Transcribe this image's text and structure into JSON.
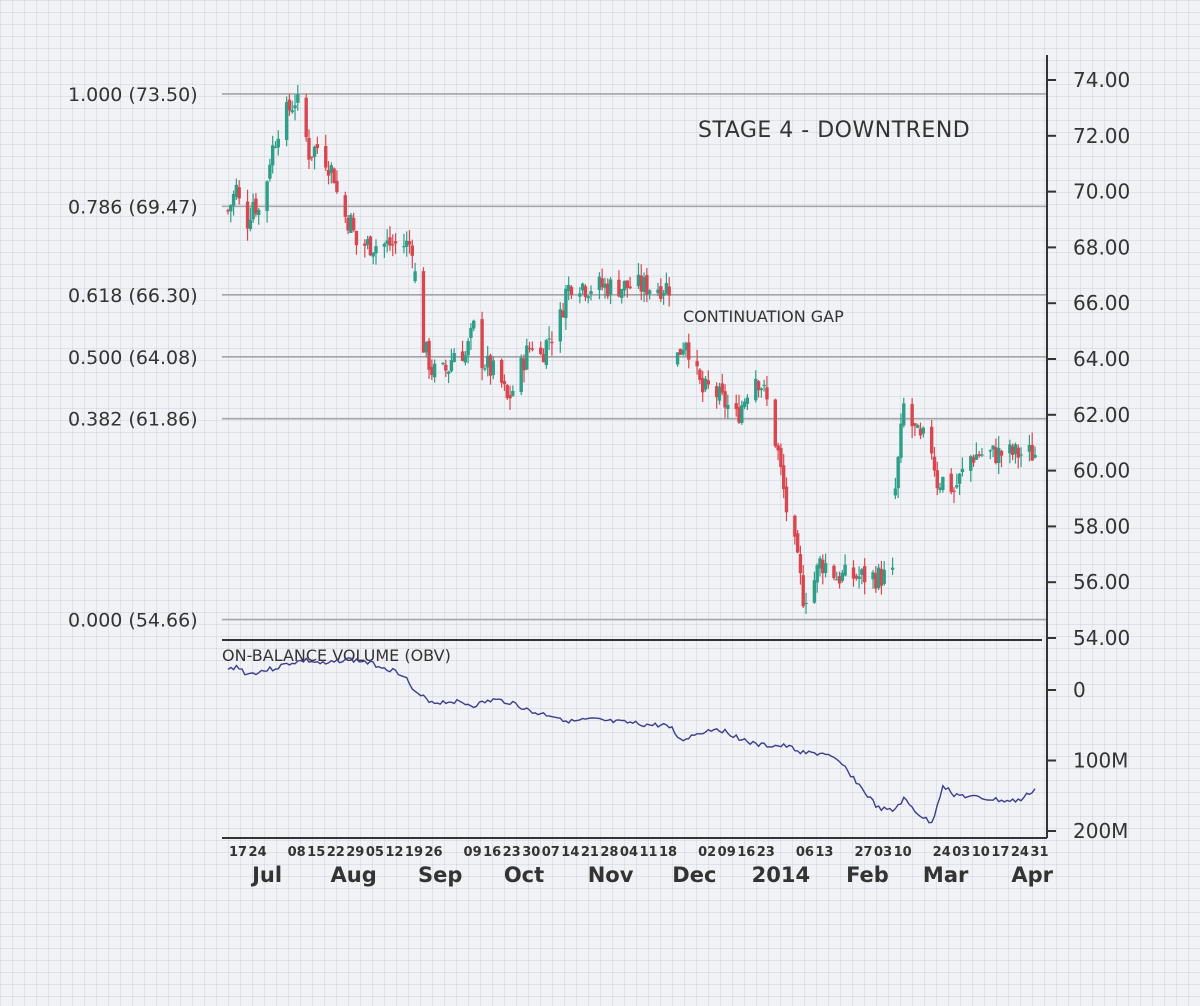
{
  "chart_data": [
    {
      "type": "candlestick",
      "title": "STAGE 4 - DOWNTREND",
      "annotation": "CONTINUATION GAP",
      "y_ticks": [
        "74.00",
        "72.00",
        "70.00",
        "68.00",
        "66.00",
        "64.00",
        "62.00",
        "60.00",
        "58.00",
        "56.00",
        "54.00"
      ],
      "ylim": [
        54,
        74
      ],
      "colors": {
        "up": "#2e9e88",
        "down": "#d8474f",
        "grid_line": "#a4a4a8"
      },
      "fib_levels": [
        {
          "label": "1.000 (73.50)",
          "value": 73.5
        },
        {
          "label": "0.786 (69.47)",
          "value": 69.47
        },
        {
          "label": "0.618 (66.30)",
          "value": 66.3
        },
        {
          "label": "0.500 (64.08)",
          "value": 64.08
        },
        {
          "label": "0.382 (61.86)",
          "value": 61.86
        },
        {
          "label": "0.000 (54.66)",
          "value": 54.66
        }
      ],
      "segments": [
        {
          "start": "2013-06-17",
          "end": "2013-08-22",
          "points": [
            [
              0,
              69.3
            ],
            [
              3,
              70.1
            ],
            [
              6,
              68.6
            ],
            [
              9,
              69.7
            ],
            [
              12,
              69.1
            ],
            [
              15,
              71.2
            ],
            [
              18,
              72.3
            ],
            [
              21,
              72.8
            ],
            [
              24,
              73.3
            ],
            [
              26,
              72.9
            ],
            [
              29,
              71.4
            ],
            [
              32,
              71.6
            ],
            [
              35,
              71.2
            ],
            [
              38,
              70.6
            ],
            [
              40,
              69.3
            ],
            [
              44,
              68.9
            ],
            [
              46,
              68.1
            ]
          ]
        },
        {
          "start": "2013-08-23",
          "end": "2013-11-22",
          "points": [
            [
              0,
              67.0
            ],
            [
              3,
              64.5
            ],
            [
              6,
              63.6
            ],
            [
              9,
              63.4
            ],
            [
              12,
              63.7
            ],
            [
              15,
              64.6
            ],
            [
              18,
              64.1
            ],
            [
              21,
              65.1
            ],
            [
              24,
              64.0
            ],
            [
              27,
              63.6
            ],
            [
              30,
              63.4
            ],
            [
              33,
              62.5
            ],
            [
              36,
              63.1
            ],
            [
              39,
              64.0
            ],
            [
              42,
              64.6
            ],
            [
              45,
              64.1
            ],
            [
              48,
              64.8
            ],
            [
              51,
              65.0
            ],
            [
              54,
              66.4
            ],
            [
              57,
              66.9
            ],
            [
              61,
              66.6
            ]
          ]
        },
        {
          "start": "2013-11-25",
          "end": "2014-02-10",
          "points": [
            [
              0,
              64.1
            ],
            [
              3,
              64.8
            ],
            [
              6,
              63.6
            ],
            [
              9,
              62.8
            ],
            [
              12,
              63.0
            ],
            [
              15,
              62.6
            ],
            [
              18,
              62.3
            ],
            [
              21,
              61.9
            ],
            [
              24,
              62.6
            ],
            [
              27,
              63.6
            ],
            [
              30,
              63.1
            ],
            [
              33,
              62.1
            ],
            [
              36,
              60.6
            ],
            [
              39,
              58.6
            ],
            [
              42,
              57.2
            ],
            [
              45,
              55.5
            ],
            [
              48,
              55.8
            ],
            [
              51,
              56.7
            ],
            [
              54,
              56.6
            ],
            [
              57,
              56.2
            ]
          ]
        },
        {
          "start": "2014-02-11",
          "end": "2014-04-02",
          "points": [
            [
              0,
              59.3
            ],
            [
              3,
              62.3
            ],
            [
              6,
              61.6
            ],
            [
              9,
              61.0
            ],
            [
              12,
              61.4
            ],
            [
              15,
              59.6
            ],
            [
              18,
              59.7
            ],
            [
              21,
              59.3
            ],
            [
              24,
              59.9
            ],
            [
              27,
              60.5
            ],
            [
              30,
              60.6
            ]
          ]
        }
      ],
      "x_ticks": [
        "17",
        "24",
        "08",
        "15",
        "22",
        "29",
        "05",
        "12",
        "19",
        "26",
        "09",
        "16",
        "23",
        "30",
        "07",
        "14",
        "21",
        "28",
        "04",
        "11",
        "18",
        "02",
        "09",
        "16",
        "23",
        "06",
        "13",
        "27",
        "03",
        "10",
        "24",
        "03",
        "10",
        "17",
        "24",
        "31"
      ],
      "x_tick_dates": [
        "2013-06-17",
        "2013-06-24",
        "2013-07-08",
        "2013-07-15",
        "2013-07-22",
        "2013-07-29",
        "2013-08-05",
        "2013-08-12",
        "2013-08-19",
        "2013-08-26",
        "2013-09-09",
        "2013-09-16",
        "2013-09-23",
        "2013-09-30",
        "2013-10-07",
        "2013-10-14",
        "2013-10-21",
        "2013-10-28",
        "2013-11-04",
        "2013-11-11",
        "2013-11-18",
        "2013-12-02",
        "2013-12-09",
        "2013-12-16",
        "2013-12-23",
        "2014-01-06",
        "2014-01-13",
        "2014-01-27",
        "2014-02-03",
        "2014-02-10",
        "2014-02-24",
        "2014-03-03",
        "2014-03-10",
        "2014-03-17",
        "2014-03-24",
        "2014-03-31"
      ],
      "months": [
        {
          "label": "Jul",
          "date": "2013-07-01"
        },
        {
          "label": "Aug",
          "date": "2013-08-01"
        },
        {
          "label": "Sep",
          "date": "2013-09-01"
        },
        {
          "label": "Oct",
          "date": "2013-10-01"
        },
        {
          "label": "Nov",
          "date": "2013-11-01"
        },
        {
          "label": "Dec",
          "date": "2013-12-01"
        },
        {
          "label": "2014",
          "date": "2014-01-01"
        },
        {
          "label": "Feb",
          "date": "2014-02-01"
        },
        {
          "label": "Mar",
          "date": "2014-03-01"
        },
        {
          "label": "Apr",
          "date": "2014-04-01"
        }
      ]
    },
    {
      "type": "line",
      "title": "ON-BALANCE VOLUME (OBV)",
      "y_ticks": [
        {
          "label": "0",
          "value": 0
        },
        {
          "label": "100M",
          "value": 100
        },
        {
          "label": "200M",
          "value": 200
        }
      ],
      "ylim": [
        -40,
        205
      ],
      "color": "#3a3f8a",
      "points": [
        [
          "2013-06-17",
          -28
        ],
        [
          "2013-06-20",
          -34
        ],
        [
          "2013-06-24",
          -22
        ],
        [
          "2013-06-28",
          -26
        ],
        [
          "2013-07-03",
          -30
        ],
        [
          "2013-07-09",
          -38
        ],
        [
          "2013-07-15",
          -42
        ],
        [
          "2013-07-22",
          -36
        ],
        [
          "2013-07-29",
          -44
        ],
        [
          "2013-08-05",
          -40
        ],
        [
          "2013-08-12",
          -32
        ],
        [
          "2013-08-19",
          -22
        ],
        [
          "2013-08-23",
          5
        ],
        [
          "2013-08-30",
          18
        ],
        [
          "2013-09-06",
          16
        ],
        [
          "2013-09-13",
          22
        ],
        [
          "2013-09-20",
          14
        ],
        [
          "2013-09-27",
          18
        ],
        [
          "2013-10-04",
          32
        ],
        [
          "2013-10-11",
          36
        ],
        [
          "2013-10-18",
          45
        ],
        [
          "2013-10-25",
          42
        ],
        [
          "2013-11-01",
          45
        ],
        [
          "2013-11-08",
          47
        ],
        [
          "2013-11-15",
          50
        ],
        [
          "2013-11-22",
          50
        ],
        [
          "2013-11-26",
          72
        ],
        [
          "2013-12-02",
          62
        ],
        [
          "2013-12-09",
          54
        ],
        [
          "2013-12-16",
          66
        ],
        [
          "2013-12-23",
          78
        ],
        [
          "2014-01-03",
          80
        ],
        [
          "2014-01-10",
          90
        ],
        [
          "2014-01-17",
          90
        ],
        [
          "2014-01-24",
          110
        ],
        [
          "2014-01-31",
          145
        ],
        [
          "2014-02-05",
          168
        ],
        [
          "2014-02-10",
          172
        ],
        [
          "2014-02-14",
          155
        ],
        [
          "2014-02-19",
          175
        ],
        [
          "2014-02-24",
          190
        ],
        [
          "2014-02-28",
          135
        ],
        [
          "2014-03-04",
          148
        ],
        [
          "2014-03-10",
          152
        ],
        [
          "2014-03-17",
          155
        ],
        [
          "2014-03-24",
          158
        ],
        [
          "2014-03-28",
          156
        ],
        [
          "2014-04-02",
          140
        ]
      ]
    }
  ]
}
